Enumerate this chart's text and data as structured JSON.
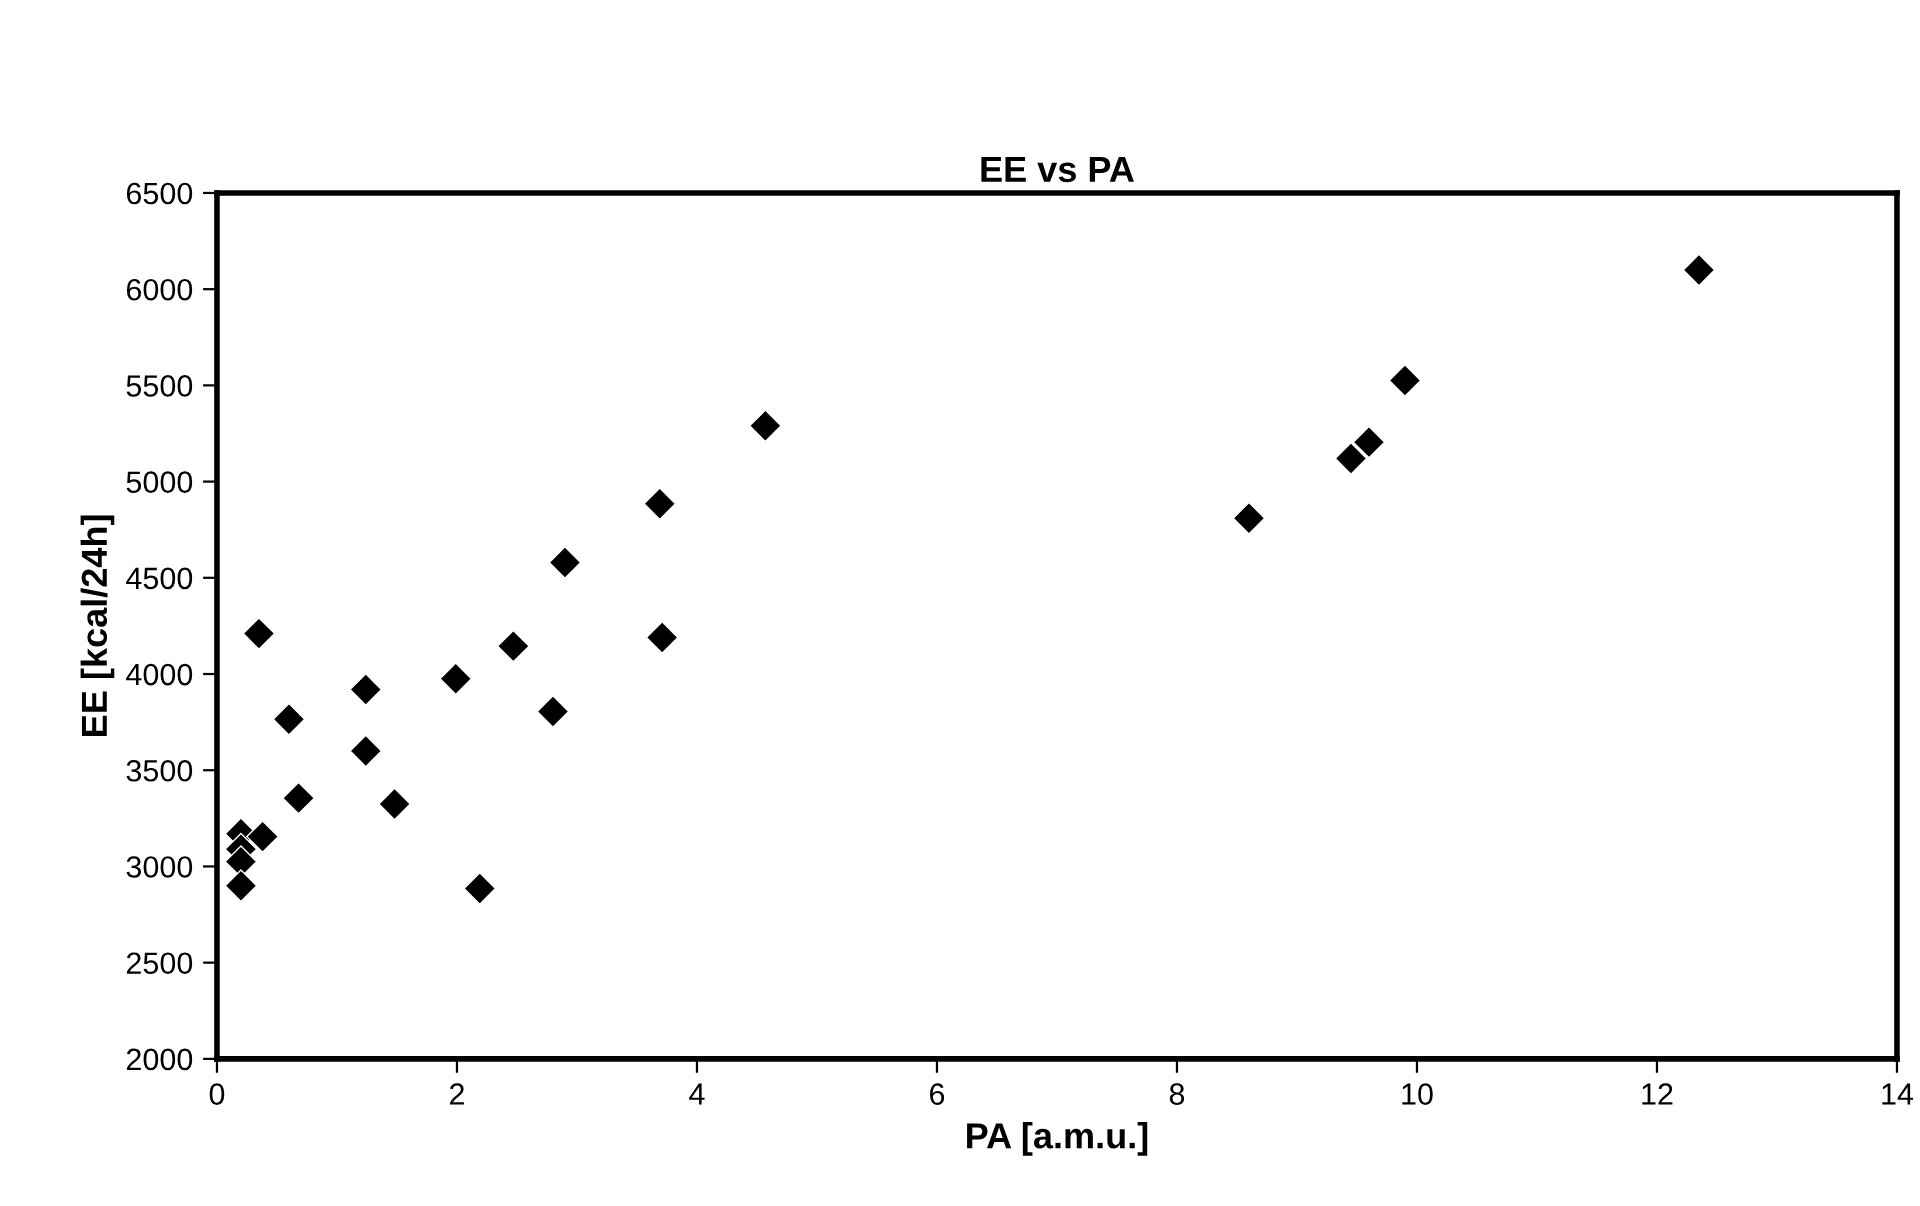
{
  "chart_data": {
    "type": "scatter",
    "title": "EE vs PA",
    "xlabel": "PA [a.m.u.]",
    "ylabel": "EE [kcal/24h]",
    "x": [
      0.2,
      0.38,
      0.2,
      0.2,
      0.2,
      0.35,
      0.6,
      0.68,
      1.24,
      1.24,
      1.48,
      1.99,
      2.19,
      2.47,
      2.8,
      2.9,
      3.69,
      3.71,
      4.57,
      8.6,
      9.45,
      9.6,
      9.9,
      12.35
    ],
    "values": [
      3170,
      3155,
      3090,
      3025,
      2900,
      4210,
      3765,
      3355,
      3920,
      3600,
      3325,
      3975,
      2885,
      4145,
      3805,
      4580,
      4885,
      4190,
      5290,
      4810,
      5120,
      5205,
      5525,
      6100
    ],
    "color": "#000000",
    "marker": "diamond",
    "xlim": [
      0,
      14
    ],
    "xticks": [
      0,
      2,
      4,
      6,
      8,
      10,
      12,
      14
    ],
    "ylim": [
      2000,
      6500
    ],
    "yticks": [
      2000,
      2500,
      3000,
      3500,
      4000,
      4500,
      5000,
      5500,
      6000,
      6500
    ],
    "grid": false
  }
}
